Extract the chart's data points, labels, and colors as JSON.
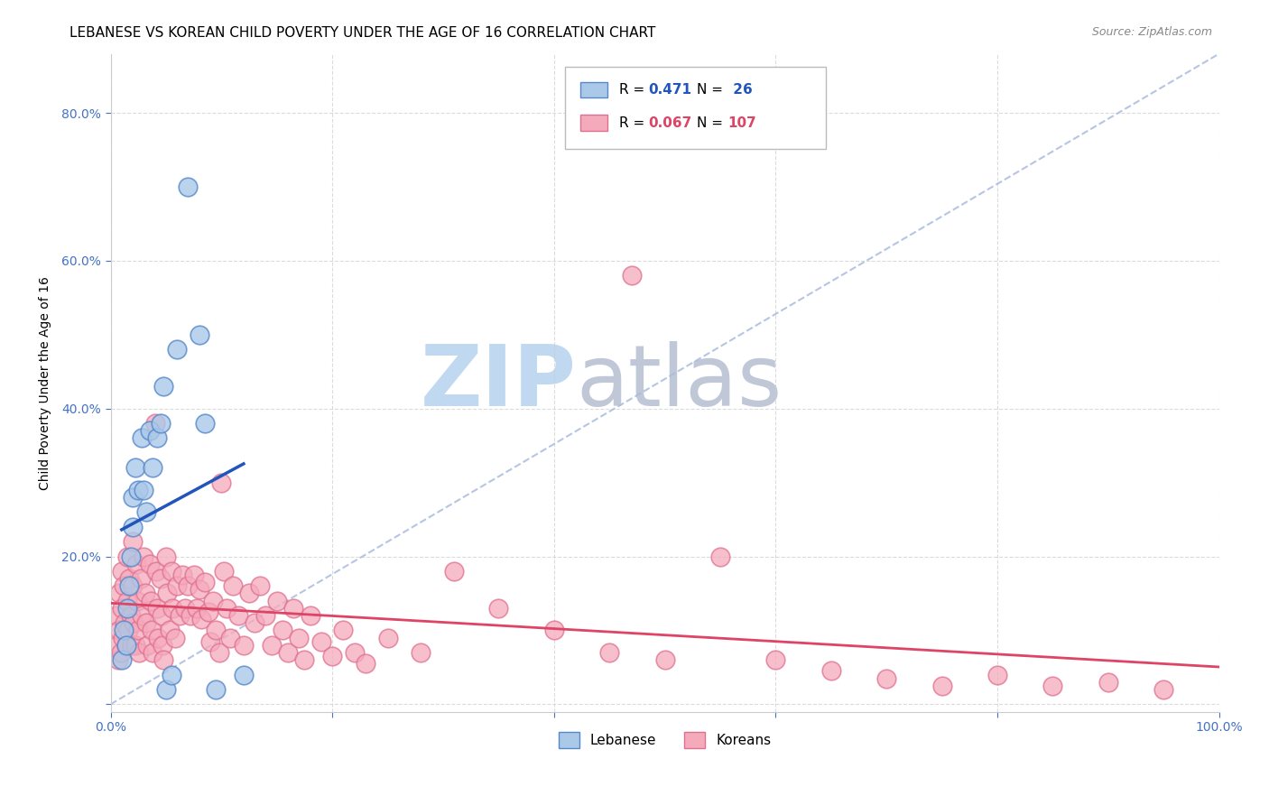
{
  "title": "LEBANESE VS KOREAN CHILD POVERTY UNDER THE AGE OF 16 CORRELATION CHART",
  "source": "Source: ZipAtlas.com",
  "ylabel": "Child Poverty Under the Age of 16",
  "xlim": [
    0,
    1.0
  ],
  "ylim": [
    -0.01,
    0.88
  ],
  "xticks": [
    0.0,
    0.2,
    0.4,
    0.6,
    0.8,
    1.0
  ],
  "xtick_labels": [
    "0.0%",
    "",
    "",
    "",
    "",
    "100.0%"
  ],
  "yticks": [
    0.0,
    0.2,
    0.4,
    0.6,
    0.8
  ],
  "ytick_labels": [
    "",
    "20.0%",
    "40.0%",
    "60.0%",
    "80.0%"
  ],
  "leb_color": "#aac8e8",
  "kor_color": "#f5aabc",
  "leb_edge_color": "#5588cc",
  "kor_edge_color": "#e07090",
  "leb_line_color": "#2255bb",
  "kor_line_color": "#dd4466",
  "leb_R": 0.471,
  "leb_N": 26,
  "kor_R": 0.067,
  "kor_N": 107,
  "background_color": "#ffffff",
  "grid_color": "#cccccc",
  "watermark_zip": "ZIP",
  "watermark_atlas": "atlas",
  "watermark_color_zip": "#c0d8f0",
  "watermark_color_atlas": "#c0c8d8",
  "title_fontsize": 11,
  "label_fontsize": 10,
  "tick_fontsize": 10,
  "tick_color": "#4472c4",
  "lebanese_x": [
    0.01,
    0.012,
    0.014,
    0.015,
    0.017,
    0.018,
    0.02,
    0.02,
    0.022,
    0.025,
    0.028,
    0.03,
    0.032,
    0.035,
    0.038,
    0.042,
    0.045,
    0.048,
    0.05,
    0.055,
    0.06,
    0.07,
    0.08,
    0.085,
    0.095,
    0.12
  ],
  "lebanese_y": [
    0.06,
    0.1,
    0.08,
    0.13,
    0.16,
    0.2,
    0.24,
    0.28,
    0.32,
    0.29,
    0.36,
    0.29,
    0.26,
    0.37,
    0.32,
    0.36,
    0.38,
    0.43,
    0.02,
    0.04,
    0.48,
    0.7,
    0.5,
    0.38,
    0.02,
    0.04
  ],
  "korean_x": [
    0.005,
    0.006,
    0.007,
    0.008,
    0.008,
    0.009,
    0.01,
    0.01,
    0.011,
    0.012,
    0.013,
    0.014,
    0.015,
    0.015,
    0.016,
    0.017,
    0.018,
    0.019,
    0.02,
    0.02,
    0.021,
    0.022,
    0.023,
    0.024,
    0.025,
    0.026,
    0.027,
    0.028,
    0.03,
    0.031,
    0.032,
    0.033,
    0.035,
    0.036,
    0.037,
    0.038,
    0.04,
    0.041,
    0.042,
    0.043,
    0.045,
    0.046,
    0.047,
    0.048,
    0.05,
    0.051,
    0.053,
    0.055,
    0.056,
    0.058,
    0.06,
    0.062,
    0.065,
    0.067,
    0.07,
    0.072,
    0.075,
    0.078,
    0.08,
    0.082,
    0.085,
    0.088,
    0.09,
    0.092,
    0.095,
    0.098,
    0.1,
    0.102,
    0.105,
    0.108,
    0.11,
    0.115,
    0.12,
    0.125,
    0.13,
    0.135,
    0.14,
    0.145,
    0.15,
    0.155,
    0.16,
    0.165,
    0.17,
    0.175,
    0.18,
    0.19,
    0.2,
    0.21,
    0.22,
    0.23,
    0.25,
    0.28,
    0.31,
    0.35,
    0.4,
    0.45,
    0.5,
    0.55,
    0.6,
    0.65,
    0.7,
    0.75,
    0.8,
    0.85,
    0.9,
    0.95,
    0.47
  ],
  "korean_y": [
    0.12,
    0.08,
    0.06,
    0.15,
    0.1,
    0.07,
    0.18,
    0.13,
    0.09,
    0.16,
    0.11,
    0.08,
    0.2,
    0.14,
    0.1,
    0.17,
    0.12,
    0.08,
    0.22,
    0.16,
    0.11,
    0.08,
    0.19,
    0.14,
    0.1,
    0.07,
    0.17,
    0.12,
    0.2,
    0.15,
    0.11,
    0.08,
    0.19,
    0.14,
    0.1,
    0.07,
    0.38,
    0.18,
    0.13,
    0.09,
    0.17,
    0.12,
    0.08,
    0.06,
    0.2,
    0.15,
    0.1,
    0.18,
    0.13,
    0.09,
    0.16,
    0.12,
    0.175,
    0.13,
    0.16,
    0.12,
    0.175,
    0.13,
    0.155,
    0.115,
    0.165,
    0.125,
    0.085,
    0.14,
    0.1,
    0.07,
    0.3,
    0.18,
    0.13,
    0.09,
    0.16,
    0.12,
    0.08,
    0.15,
    0.11,
    0.16,
    0.12,
    0.08,
    0.14,
    0.1,
    0.07,
    0.13,
    0.09,
    0.06,
    0.12,
    0.085,
    0.065,
    0.1,
    0.07,
    0.055,
    0.09,
    0.07,
    0.18,
    0.13,
    0.1,
    0.07,
    0.06,
    0.2,
    0.06,
    0.045,
    0.035,
    0.025,
    0.04,
    0.025,
    0.03,
    0.02,
    0.58
  ]
}
